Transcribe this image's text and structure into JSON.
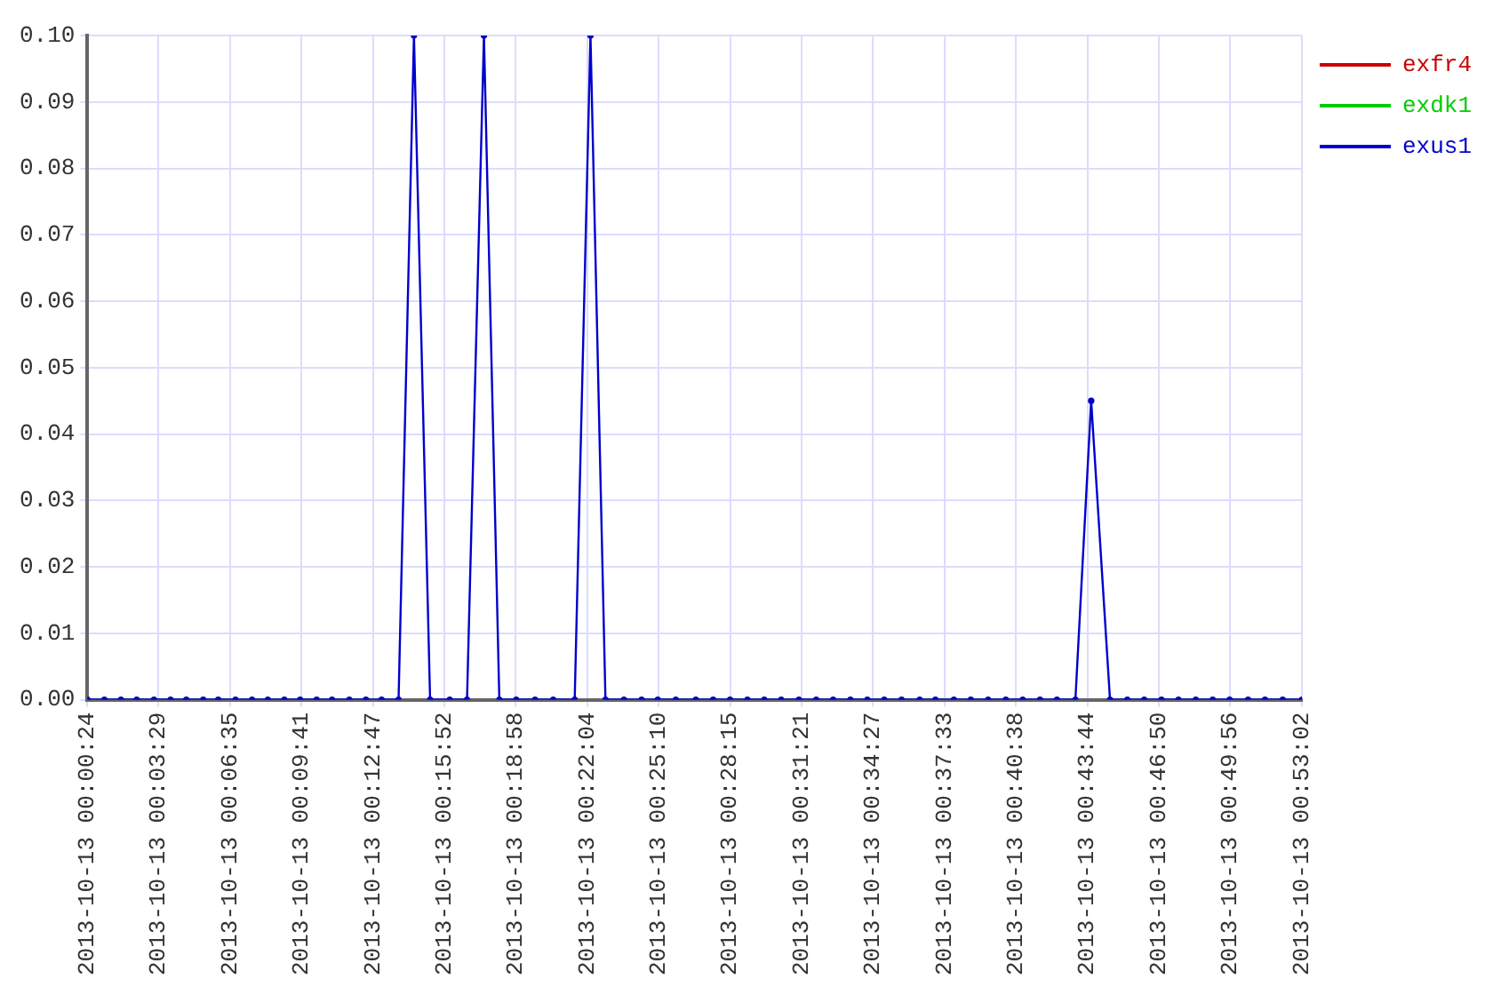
{
  "chart_data": {
    "type": "line",
    "x": [
      "2013-10-13T00:00:24",
      "2013-10-13T00:01:08",
      "2013-10-13T00:01:51",
      "2013-10-13T00:02:32",
      "2013-10-13T00:03:17",
      "2013-10-13T00:04:00",
      "2013-10-13T00:04:41",
      "2013-10-13T00:05:25",
      "2013-10-13T00:06:04",
      "2013-10-13T00:06:49",
      "2013-10-13T00:07:32",
      "2013-10-13T00:08:13",
      "2013-10-13T00:08:56",
      "2013-10-13T00:09:37",
      "2013-10-13T00:10:20",
      "2013-10-13T00:11:00",
      "2013-10-13T00:11:45",
      "2013-10-13T00:12:28",
      "2013-10-13T00:13:09",
      "2013-10-13T00:13:53",
      "2013-10-13T00:14:33",
      "2013-10-13T00:15:15",
      "2013-10-13T00:16:06",
      "2013-10-13T00:16:51",
      "2013-10-13T00:17:35",
      "2013-10-13T00:18:15",
      "2013-10-13T00:18:59",
      "2013-10-13T00:19:48",
      "2013-10-13T00:20:35",
      "2013-10-13T00:21:31",
      "2013-10-13T00:22:12",
      "2013-10-13T00:22:51",
      "2013-10-13T00:23:39",
      "2013-10-13T00:24:25",
      "2013-10-13T00:25:07",
      "2013-10-13T00:25:54",
      "2013-10-13T00:26:46",
      "2013-10-13T00:27:31",
      "2013-10-13T00:28:15",
      "2013-10-13T00:29:00",
      "2013-10-13T00:29:44",
      "2013-10-13T00:30:28",
      "2013-10-13T00:31:14",
      "2013-10-13T00:31:59",
      "2013-10-13T00:32:43",
      "2013-10-13T00:33:28",
      "2013-10-13T00:34:12",
      "2013-10-13T00:34:56",
      "2013-10-13T00:35:41",
      "2013-10-13T00:36:28",
      "2013-10-13T00:37:09",
      "2013-10-13T00:37:57",
      "2013-10-13T00:38:41",
      "2013-10-13T00:39:26",
      "2013-10-13T00:40:12",
      "2013-10-13T00:40:56",
      "2013-10-13T00:41:41",
      "2013-10-13T00:42:25",
      "2013-10-13T00:43:13",
      "2013-10-13T00:43:54",
      "2013-10-13T00:44:43",
      "2013-10-13T00:45:28",
      "2013-10-13T00:46:12",
      "2013-10-13T00:46:57",
      "2013-10-13T00:47:41",
      "2013-10-13T00:48:26",
      "2013-10-13T00:49:10",
      "2013-10-13T00:49:54",
      "2013-10-13T00:50:42",
      "2013-10-13T00:51:26",
      "2013-10-13T00:52:12",
      "2013-10-13T00:53:02"
    ],
    "series": [
      {
        "name": "exfr4",
        "color": "#cc0000",
        "values": [
          null,
          null,
          null,
          null,
          null,
          null,
          null,
          null,
          null,
          null,
          null,
          null,
          null,
          null,
          null,
          null,
          null,
          null,
          null,
          null,
          null,
          null,
          null,
          null,
          null,
          null,
          null,
          null,
          null,
          null,
          null,
          null,
          null,
          null,
          null,
          null,
          null,
          null,
          null,
          null,
          null,
          null,
          null,
          null,
          null,
          null,
          null,
          null,
          null,
          null,
          null,
          null,
          null,
          null,
          null,
          null,
          null,
          null,
          null,
          null,
          null,
          null,
          null,
          null,
          null,
          null,
          null,
          null,
          null,
          null,
          null,
          null
        ]
      },
      {
        "name": "exdk1",
        "color": "#00cc00",
        "values": [
          null,
          null,
          null,
          null,
          null,
          null,
          null,
          null,
          null,
          null,
          null,
          null,
          null,
          null,
          null,
          null,
          null,
          null,
          null,
          null,
          null,
          null,
          null,
          null,
          null,
          null,
          null,
          null,
          null,
          null,
          null,
          null,
          null,
          null,
          null,
          null,
          null,
          null,
          null,
          null,
          null,
          null,
          null,
          null,
          null,
          null,
          null,
          null,
          null,
          null,
          null,
          null,
          null,
          null,
          null,
          null,
          null,
          null,
          null,
          null,
          null,
          null,
          null,
          null,
          null,
          null,
          null,
          null,
          null,
          null,
          null,
          null
        ]
      },
      {
        "name": "exus1",
        "color": "#0000cc",
        "values": [
          0,
          0,
          0,
          0,
          0,
          0,
          0,
          0,
          0,
          0,
          0,
          0,
          0,
          0,
          0,
          0,
          0,
          0,
          0,
          0,
          0.1,
          0,
          0,
          0,
          0.1,
          0,
          0,
          0,
          0,
          0,
          0.1,
          0,
          0,
          0,
          0,
          0,
          0,
          0,
          0,
          0,
          0,
          0,
          0,
          0,
          0,
          0,
          0,
          0,
          0,
          0,
          0,
          0,
          0,
          0,
          0,
          0,
          0,
          0,
          0,
          0.045,
          0,
          0,
          0,
          0,
          0,
          0,
          0,
          0,
          0,
          0,
          0,
          0
        ]
      }
    ],
    "xlim": [
      "2013-10-13T00:00:24",
      "2013-10-13T00:53:02"
    ],
    "xticks": [
      {
        "value": "2013-10-13T00:00:24",
        "label": "2013-10-13 00:00:24"
      },
      {
        "value": "2013-10-13T00:03:29",
        "label": "2013-10-13 00:03:29"
      },
      {
        "value": "2013-10-13T00:06:35",
        "label": "2013-10-13 00:06:35"
      },
      {
        "value": "2013-10-13T00:09:41",
        "label": "2013-10-13 00:09:41"
      },
      {
        "value": "2013-10-13T00:12:47",
        "label": "2013-10-13 00:12:47"
      },
      {
        "value": "2013-10-13T00:15:52",
        "label": "2013-10-13 00:15:52"
      },
      {
        "value": "2013-10-13T00:18:58",
        "label": "2013-10-13 00:18:58"
      },
      {
        "value": "2013-10-13T00:22:04",
        "label": "2013-10-13 00:22:04"
      },
      {
        "value": "2013-10-13T00:25:10",
        "label": "2013-10-13 00:25:10"
      },
      {
        "value": "2013-10-13T00:28:15",
        "label": "2013-10-13 00:28:15"
      },
      {
        "value": "2013-10-13T00:31:21",
        "label": "2013-10-13 00:31:21"
      },
      {
        "value": "2013-10-13T00:34:27",
        "label": "2013-10-13 00:34:27"
      },
      {
        "value": "2013-10-13T00:37:33",
        "label": "2013-10-13 00:37:33"
      },
      {
        "value": "2013-10-13T00:40:38",
        "label": "2013-10-13 00:40:38"
      },
      {
        "value": "2013-10-13T00:43:44",
        "label": "2013-10-13 00:43:44"
      },
      {
        "value": "2013-10-13T00:46:50",
        "label": "2013-10-13 00:46:50"
      },
      {
        "value": "2013-10-13T00:49:56",
        "label": "2013-10-13 00:49:56"
      },
      {
        "value": "2013-10-13T00:53:02",
        "label": "2013-10-13 00:53:02"
      }
    ],
    "ylim": [
      0,
      0.1
    ],
    "yticks": [
      {
        "value": 0,
        "label": "0.00"
      },
      {
        "value": 0.01,
        "label": "0.01"
      },
      {
        "value": 0.02,
        "label": "0.02"
      },
      {
        "value": 0.03,
        "label": "0.03"
      },
      {
        "value": 0.04,
        "label": "0.04"
      },
      {
        "value": 0.05,
        "label": "0.05"
      },
      {
        "value": 0.06,
        "label": "0.06"
      },
      {
        "value": 0.07,
        "label": "0.07"
      },
      {
        "value": 0.08,
        "label": "0.08"
      },
      {
        "value": 0.09,
        "label": "0.09"
      },
      {
        "value": 0.1,
        "label": "0.10"
      }
    ],
    "grid": true,
    "legend": "top right",
    "marker": "circle",
    "line_style": "solid"
  }
}
